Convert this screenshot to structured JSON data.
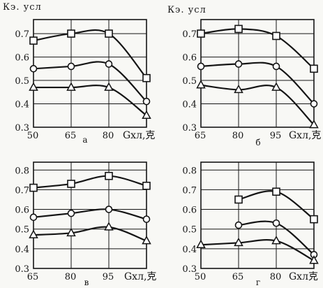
{
  "chart_data": [
    {
      "type": "line",
      "panel_label": "а",
      "ylabel": "Кэ. усл",
      "x_unit": "Gхл,克",
      "x_ticks": [
        "50",
        "65",
        "80"
      ],
      "y_ticks": [
        "0.3",
        "0.4",
        "0.5",
        "0.6",
        "0.7"
      ],
      "xlim": [
        50,
        95
      ],
      "ylim": [
        0.3,
        0.76
      ],
      "grid": true,
      "series": [
        {
          "marker": "square",
          "x": [
            50,
            65,
            80,
            95
          ],
          "y": [
            0.67,
            0.7,
            0.7,
            0.51
          ]
        },
        {
          "marker": "circle",
          "x": [
            50,
            65,
            80,
            95
          ],
          "y": [
            0.55,
            0.56,
            0.57,
            0.41
          ]
        },
        {
          "marker": "triangle",
          "x": [
            50,
            65,
            80,
            95
          ],
          "y": [
            0.47,
            0.47,
            0.47,
            0.35
          ]
        }
      ]
    },
    {
      "type": "line",
      "panel_label": "б",
      "ylabel": "Кэ. усл",
      "x_unit": "Gхл,克",
      "x_ticks": [
        "65",
        "80",
        "95"
      ],
      "y_ticks": [
        "0.3",
        "0.4",
        "0.5",
        "0.6",
        "0.7"
      ],
      "xlim": [
        65,
        110
      ],
      "ylim": [
        0.3,
        0.76
      ],
      "grid": true,
      "series": [
        {
          "marker": "square",
          "x": [
            65,
            80,
            95,
            110
          ],
          "y": [
            0.7,
            0.72,
            0.69,
            0.55
          ]
        },
        {
          "marker": "circle",
          "x": [
            65,
            80,
            95,
            110
          ],
          "y": [
            0.56,
            0.57,
            0.56,
            0.4
          ]
        },
        {
          "marker": "triangle",
          "x": [
            65,
            80,
            95,
            110
          ],
          "y": [
            0.48,
            0.46,
            0.47,
            0.31
          ]
        }
      ]
    },
    {
      "type": "line",
      "panel_label": "в",
      "ylabel": "",
      "x_unit": "Gхл,克",
      "x_ticks": [
        "65",
        "80",
        "95"
      ],
      "y_ticks": [
        "0.3",
        "0.4",
        "0.5",
        "0.6",
        "0.7",
        "0.8"
      ],
      "xlim": [
        65,
        110
      ],
      "ylim": [
        0.3,
        0.84
      ],
      "grid": true,
      "series": [
        {
          "marker": "square",
          "x": [
            65,
            80,
            95,
            110
          ],
          "y": [
            0.71,
            0.73,
            0.77,
            0.72
          ]
        },
        {
          "marker": "circle",
          "x": [
            65,
            80,
            95,
            110
          ],
          "y": [
            0.56,
            0.58,
            0.6,
            0.55
          ]
        },
        {
          "marker": "triangle",
          "x": [
            65,
            80,
            95,
            110
          ],
          "y": [
            0.47,
            0.48,
            0.51,
            0.44
          ]
        }
      ]
    },
    {
      "type": "line",
      "panel_label": "г",
      "ylabel": "",
      "x_unit": "Gхл克",
      "x_ticks": [
        "50",
        "65",
        "80"
      ],
      "y_ticks": [
        "0.3",
        "0.4",
        "0.5",
        "0.6",
        "0.7",
        "0.8"
      ],
      "xlim": [
        50,
        95
      ],
      "ylim": [
        0.3,
        0.84
      ],
      "grid": true,
      "series": [
        {
          "marker": "square",
          "x": [
            65,
            80,
            95
          ],
          "y": [
            0.65,
            0.69,
            0.55
          ]
        },
        {
          "marker": "circle",
          "x": [
            65,
            80,
            95
          ],
          "y": [
            0.52,
            0.53,
            0.37
          ]
        },
        {
          "marker": "triangle",
          "x": [
            50,
            65,
            80,
            95
          ],
          "y": [
            0.42,
            0.43,
            0.44,
            0.34
          ]
        }
      ]
    }
  ]
}
